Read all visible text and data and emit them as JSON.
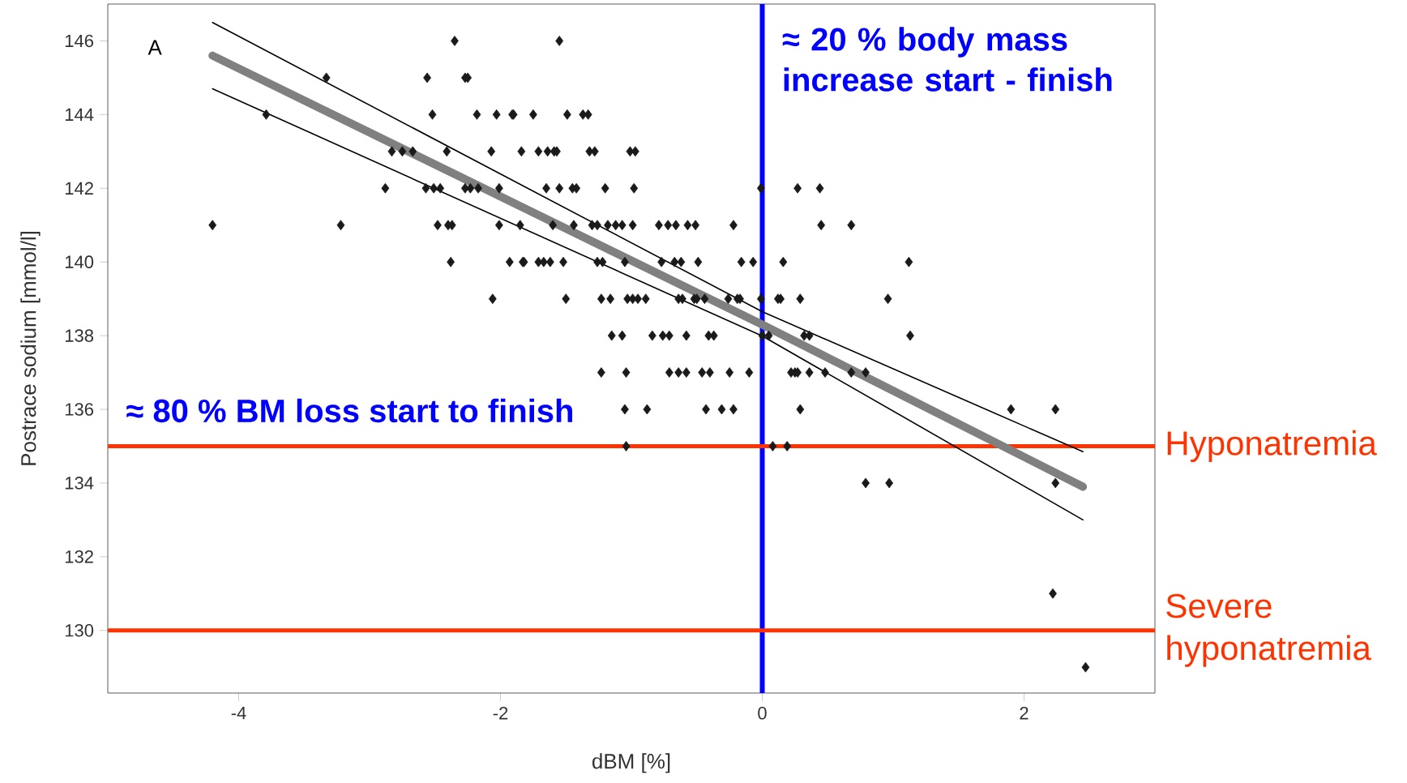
{
  "chart_data": {
    "type": "scatter",
    "xlabel": "dBM [%]",
    "ylabel": "Postrace sodium [mmol/l]",
    "xlim": [
      -5,
      3
    ],
    "ylim": [
      128.3,
      147
    ],
    "xticks": [
      -4,
      -2,
      0,
      2
    ],
    "yticks": [
      130,
      132,
      134,
      136,
      138,
      140,
      142,
      144,
      146
    ],
    "grid": false,
    "annotations": [
      "A",
      "≈ 80 % BM loss start to finish"
    ],
    "ref_lines": [
      {
        "axis": "x",
        "value": 0,
        "label": "≈ 20 % body mass increase start - finish",
        "color": "#0000ff"
      },
      {
        "axis": "y",
        "value": 135,
        "label": "Hyponatremia",
        "color": "#ff3300"
      },
      {
        "axis": "y",
        "value": 130,
        "label": "Severe hyponatremia",
        "color": "#ff3300"
      }
    ],
    "series": [
      {
        "type": "scatter",
        "marker": "diamond",
        "color": "#1a1a1a",
        "x": [
          -2.35,
          -1.55,
          -3.33,
          -2.56,
          -2.27,
          -2.25,
          -3.79,
          -2.52,
          -2.18,
          -2.03,
          -1.91,
          -1.9,
          -1.75,
          -1.49,
          -1.37,
          -1.33,
          -2.83,
          -2.75,
          -2.67,
          -2.41,
          -2.07,
          -1.84,
          -1.71,
          -1.64,
          -1.59,
          -1.57,
          -1.32,
          -1.28,
          -1.01,
          -0.97,
          -2.88,
          -2.57,
          -2.51,
          -2.46,
          -2.27,
          -2.23,
          -2.17,
          -2.01,
          -1.65,
          -1.55,
          -1.45,
          -1.42,
          -1.2,
          -0.98,
          -0.01,
          0.27,
          0.44,
          -4.2,
          -3.22,
          -2.48,
          -2.4,
          -2.37,
          -2.01,
          -1.85,
          -1.6,
          -1.44,
          -1.3,
          -1.26,
          -1.18,
          -1.12,
          -1.07,
          -0.99,
          -0.79,
          -0.72,
          -0.66,
          -0.57,
          -0.51,
          -0.22,
          0.45,
          0.68,
          -2.38,
          -1.93,
          -1.83,
          -1.82,
          -1.71,
          -1.67,
          -1.62,
          -1.52,
          -1.26,
          -1.22,
          -1.05,
          -0.77,
          -0.67,
          -0.62,
          -0.49,
          -0.16,
          -0.07,
          0.16,
          1.12,
          -2.06,
          -1.5,
          -1.23,
          -1.16,
          -1.03,
          -0.99,
          -0.95,
          -0.89,
          -0.64,
          -0.61,
          -0.52,
          -0.5,
          -0.44,
          -0.26,
          -0.19,
          -0.17,
          -0.01,
          0.12,
          0.14,
          0.29,
          0.96,
          -1.15,
          -1.07,
          -0.84,
          -0.76,
          -0.71,
          -0.58,
          -0.41,
          -0.37,
          0.0,
          0.05,
          0.32,
          0.36,
          1.13,
          -1.23,
          -1.04,
          -0.71,
          -0.64,
          -0.58,
          -0.46,
          -0.4,
          -0.25,
          -0.1,
          0.22,
          0.25,
          0.27,
          0.36,
          0.48,
          0.68,
          0.79,
          -1.05,
          -0.88,
          -0.43,
          -0.31,
          -0.22,
          0.29,
          1.9,
          2.24,
          -1.04,
          0.08,
          0.19,
          0.79,
          0.97,
          2.24,
          2.22,
          2.47
        ],
        "values": [
          146,
          146,
          145,
          145,
          145,
          145,
          144,
          144,
          144,
          144,
          144,
          144,
          144,
          144,
          144,
          144,
          143,
          143,
          143,
          143,
          143,
          143,
          143,
          143,
          143,
          143,
          143,
          143,
          143,
          143,
          142,
          142,
          142,
          142,
          142,
          142,
          142,
          142,
          142,
          142,
          142,
          142,
          142,
          142,
          142,
          142,
          142,
          141,
          141,
          141,
          141,
          141,
          141,
          141,
          141,
          141,
          141,
          141,
          141,
          141,
          141,
          141,
          141,
          141,
          141,
          141,
          141,
          141,
          141,
          141,
          140,
          140,
          140,
          140,
          140,
          140,
          140,
          140,
          140,
          140,
          140,
          140,
          140,
          140,
          140,
          140,
          140,
          140,
          140,
          139,
          139,
          139,
          139,
          139,
          139,
          139,
          139,
          139,
          139,
          139,
          139,
          139,
          139,
          139,
          139,
          139,
          139,
          139,
          139,
          139,
          138,
          138,
          138,
          138,
          138,
          138,
          138,
          138,
          138,
          138,
          138,
          138,
          138,
          137,
          137,
          137,
          137,
          137,
          137,
          137,
          137,
          137,
          137,
          137,
          137,
          137,
          137,
          137,
          137,
          136,
          136,
          136,
          136,
          136,
          136,
          136,
          136,
          135,
          135,
          135,
          134,
          134,
          134,
          131,
          129
        ]
      },
      {
        "type": "line",
        "marker": "none",
        "color": "#808080",
        "x": [
          -4.2,
          0,
          2.45
        ],
        "values": [
          145.6,
          138.3,
          133.9
        ]
      },
      {
        "type": "line",
        "marker": "none",
        "color": "#000000",
        "x": [
          -4.2,
          0,
          2.45
        ],
        "values": [
          144.7,
          137.99,
          133.0
        ]
      },
      {
        "type": "line",
        "marker": "none",
        "color": "#000000",
        "x": [
          -4.2,
          0,
          2.45
        ],
        "values": [
          146.5,
          138.65,
          134.85
        ]
      }
    ]
  }
}
